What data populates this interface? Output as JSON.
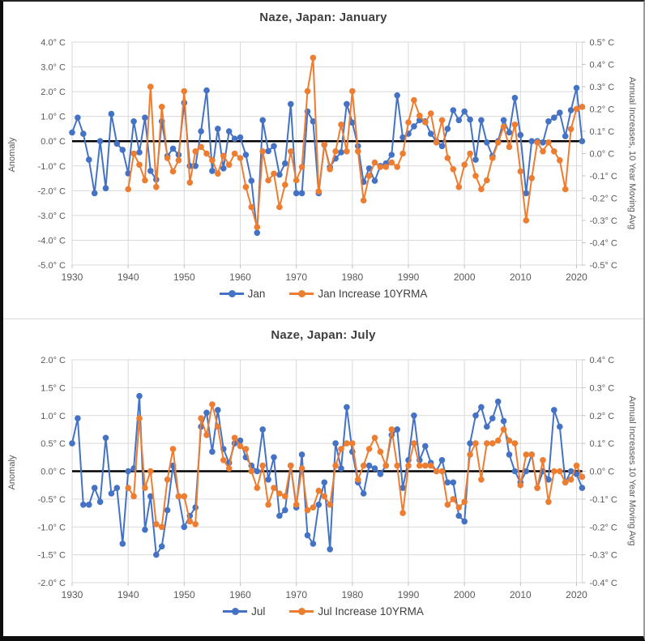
{
  "page": {
    "description": "Two stacked climate anomaly line charts for Naze, Japan"
  },
  "chart_data": [
    {
      "type": "line",
      "title": "Naze, Japan: January",
      "ylabel_left": "Anomaly",
      "ylabel_right": "Annual Increases, 10 Year Moving Avg",
      "grid": true,
      "grid_color": "#d9d9d9",
      "zero_line_color": "#000000",
      "legend_position": "bottom",
      "tick_suffix": "° C",
      "x_range": [
        1930,
        2020
      ],
      "x_ticks": [
        1930,
        1940,
        1950,
        1960,
        1970,
        1980,
        1990,
        2000,
        2010,
        2020
      ],
      "y_left": {
        "min": -5.0,
        "max": 4.0,
        "step": 1.0
      },
      "y_right": {
        "min": -0.5,
        "max": 0.5,
        "step": 0.1
      },
      "years": [
        1930,
        1931,
        1932,
        1933,
        1934,
        1935,
        1936,
        1937,
        1938,
        1939,
        1940,
        1941,
        1942,
        1943,
        1944,
        1945,
        1946,
        1947,
        1948,
        1949,
        1950,
        1951,
        1952,
        1953,
        1954,
        1955,
        1956,
        1957,
        1958,
        1959,
        1960,
        1961,
        1962,
        1963,
        1964,
        1965,
        1966,
        1967,
        1968,
        1969,
        1970,
        1971,
        1972,
        1973,
        1974,
        1975,
        1976,
        1977,
        1978,
        1979,
        1980,
        1981,
        1982,
        1983,
        1984,
        1985,
        1986,
        1987,
        1988,
        1989,
        1990,
        1991,
        1992,
        1993,
        1994,
        1995,
        1996,
        1997,
        1998,
        1999,
        2000,
        2001,
        2002,
        2003,
        2004,
        2005,
        2006,
        2007,
        2008,
        2009,
        2010,
        2011,
        2012,
        2013,
        2014,
        2015,
        2016,
        2017,
        2018,
        2019,
        2020,
        2021
      ],
      "series": [
        {
          "name": "Jan",
          "axis": "left",
          "color": "#4472C4",
          "values": [
            0.35,
            0.95,
            0.3,
            -0.75,
            -2.1,
            0,
            -1.9,
            1.1,
            -0.1,
            -0.35,
            -1.3,
            0.8,
            -0.45,
            0.95,
            -1.2,
            -1.55,
            0.8,
            -0.6,
            -0.3,
            -0.55,
            1.55,
            -1,
            -1,
            0.4,
            2.05,
            -1.2,
            0.5,
            -1.1,
            0.4,
            0.1,
            0.15,
            -0.55,
            -1.6,
            -3.7,
            0.85,
            -0.4,
            -0.2,
            -1.35,
            -0.9,
            1.5,
            -2.1,
            -2.1,
            1.2,
            0.8,
            -2.1,
            -0.15,
            -1.05,
            -0.7,
            -0.45,
            1.5,
            0.75,
            -0.2,
            -1.65,
            -1.1,
            -1.6,
            -1,
            -0.9,
            -0.55,
            1.85,
            0.15,
            0.3,
            0.6,
            0.85,
            0.8,
            0.3,
            0,
            -0.2,
            0.5,
            1.25,
            0.85,
            1.2,
            0.87,
            -0.75,
            0.85,
            -0.05,
            -0.6,
            0,
            0.85,
            0.35,
            1.75,
            0.25,
            -2.1,
            0,
            0,
            -0.05,
            0.8,
            0.95,
            1.15,
            0.2,
            1.25,
            2.15,
            0
          ]
        },
        {
          "name": "Jan Increase 10YRMA",
          "axis": "right",
          "color": "#ED7D31",
          "values": [
            null,
            null,
            null,
            null,
            null,
            null,
            null,
            null,
            null,
            null,
            -0.16,
            0,
            -0.05,
            -0.12,
            0.3,
            -0.15,
            0.21,
            -0.02,
            -0.08,
            -0.03,
            0.28,
            -0.13,
            0.01,
            0.03,
            0,
            -0.03,
            -0.09,
            -0.01,
            -0.05,
            0,
            -0.02,
            -0.15,
            -0.24,
            -0.33,
            0.01,
            -0.12,
            -0.09,
            -0.24,
            -0.14,
            0.01,
            -0.12,
            -0.06,
            0.28,
            0.43,
            -0.17,
            0.04,
            -0.07,
            0.01,
            0.13,
            0.01,
            0.28,
            0.01,
            -0.21,
            -0.1,
            -0.04,
            -0.06,
            -0.06,
            -0.04,
            -0.06,
            0,
            0.14,
            0.24,
            0.17,
            0.14,
            0.18,
            0.05,
            0.15,
            -0.02,
            -0.07,
            -0.15,
            -0.05,
            0,
            -0.1,
            -0.16,
            -0.12,
            -0.02,
            0.05,
            0.12,
            0.03,
            0.13,
            -0.08,
            -0.3,
            -0.11,
            0.05,
            0.01,
            0.05,
            0.01,
            -0.03,
            -0.16,
            0.11,
            0.2,
            0.21
          ]
        }
      ]
    },
    {
      "type": "line",
      "title": "Naze, Japan: July",
      "ylabel_left": "Anomaly",
      "ylabel_right": "Annual Increases 10 Year Moving Avg",
      "grid": true,
      "grid_color": "#d9d9d9",
      "zero_line_color": "#000000",
      "legend_position": "bottom",
      "tick_suffix": "° C",
      "x_range": [
        1930,
        2020
      ],
      "x_ticks": [
        1930,
        1940,
        1950,
        1960,
        1970,
        1980,
        1990,
        2000,
        2010,
        2020
      ],
      "y_left": {
        "min": -2.0,
        "max": 2.0,
        "step": 0.5
      },
      "y_right": {
        "min": -0.4,
        "max": 0.4,
        "step": 0.1
      },
      "years": [
        1930,
        1931,
        1932,
        1933,
        1934,
        1935,
        1936,
        1937,
        1938,
        1939,
        1940,
        1941,
        1942,
        1943,
        1944,
        1945,
        1946,
        1947,
        1948,
        1949,
        1950,
        1951,
        1952,
        1953,
        1954,
        1955,
        1956,
        1957,
        1958,
        1959,
        1960,
        1961,
        1962,
        1963,
        1964,
        1965,
        1966,
        1967,
        1968,
        1969,
        1970,
        1971,
        1972,
        1973,
        1974,
        1975,
        1976,
        1977,
        1978,
        1979,
        1980,
        1981,
        1982,
        1983,
        1984,
        1985,
        1986,
        1987,
        1988,
        1989,
        1990,
        1991,
        1992,
        1993,
        1994,
        1995,
        1996,
        1997,
        1998,
        1999,
        2000,
        2001,
        2002,
        2003,
        2004,
        2005,
        2006,
        2007,
        2008,
        2009,
        2010,
        2011,
        2012,
        2013,
        2014,
        2015,
        2016,
        2017,
        2018,
        2019,
        2020,
        2021
      ],
      "series": [
        {
          "name": "Jul",
          "axis": "left",
          "color": "#4472C4",
          "values": [
            0.5,
            0.95,
            -0.6,
            -0.6,
            -0.3,
            -0.55,
            0.6,
            -0.4,
            -0.3,
            -1.3,
            0,
            0.05,
            1.35,
            -1.05,
            -0.45,
            -1.5,
            -1.35,
            -0.7,
            0.1,
            -0.45,
            -1,
            -0.8,
            -0.65,
            0.8,
            1.05,
            0.35,
            1.1,
            0.4,
            0.15,
            0.5,
            0.55,
            0.25,
            0.1,
            0,
            0.75,
            -0.15,
            0.25,
            -0.8,
            -0.7,
            0.1,
            -0.65,
            0.3,
            -1.15,
            -1.3,
            -0.6,
            -0.2,
            -1.4,
            0.5,
            0.05,
            1.15,
            0.35,
            -0.2,
            -0.4,
            0.1,
            0.05,
            -0.05,
            0.1,
            0.65,
            0.75,
            -0.3,
            0.2,
            1,
            0.2,
            0.45,
            0.15,
            0,
            0.2,
            -0.2,
            -0.2,
            -0.8,
            -0.9,
            0.5,
            1,
            1.15,
            0.8,
            0.95,
            1.25,
            0.9,
            0.3,
            0,
            -0.2,
            0,
            0.3,
            -0.3,
            0,
            -0.15,
            1.1,
            0.8,
            -0.2,
            0,
            -0.05,
            -0.3
          ]
        },
        {
          "name": "Jul Increase 10YRMA",
          "axis": "right",
          "color": "#ED7D31",
          "values": [
            null,
            null,
            null,
            null,
            null,
            null,
            null,
            null,
            null,
            null,
            -0.06,
            -0.09,
            0.19,
            -0.06,
            0,
            -0.19,
            -0.2,
            -0.03,
            0.08,
            -0.09,
            -0.09,
            -0.18,
            -0.19,
            0.19,
            0.13,
            0.24,
            0.16,
            0.04,
            0.01,
            0.12,
            0.09,
            0.08,
            0,
            -0.06,
            0.02,
            -0.12,
            -0.06,
            -0.08,
            -0.09,
            0.02,
            -0.12,
            0.01,
            -0.14,
            -0.13,
            -0.07,
            -0.09,
            -0.12,
            0.02,
            0.08,
            0.1,
            0.1,
            -0.03,
            0.02,
            0.08,
            0.12,
            0.07,
            0.02,
            0.15,
            0.02,
            -0.15,
            0.02,
            0.1,
            0.02,
            0.02,
            0.02,
            0,
            0,
            -0.12,
            -0.1,
            -0.13,
            -0.11,
            0.06,
            0.1,
            -0.03,
            0.1,
            0.1,
            0.11,
            0.15,
            0.11,
            0.1,
            -0.05,
            0.06,
            0.06,
            -0.06,
            0.04,
            -0.11,
            0,
            0,
            -0.04,
            -0.03,
            0.02,
            -0.02
          ]
        }
      ]
    }
  ]
}
